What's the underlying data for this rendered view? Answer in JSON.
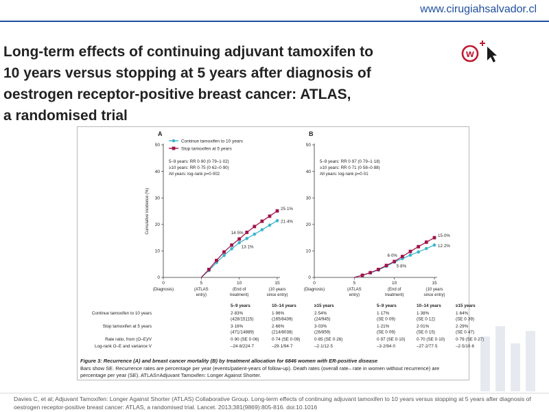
{
  "site": {
    "url": "www.cirugiahsalvador.cl"
  },
  "slide": {
    "title_lines": [
      "Long-term effects of continuing adjuvant tamoxifen to",
      "10 years versus stopping at 5 years after diagnosis of",
      "oestrogen receptor-positive breast cancer: ATLAS,",
      "a randomised trial"
    ]
  },
  "colors": {
    "continue": "#3bb4cc",
    "stop": "#a0144a",
    "header": "#1f4e9c"
  },
  "chart_data": [
    {
      "type": "line",
      "panel_label": "A",
      "ylabel": "Cumulative incidence (%)",
      "ylim": [
        0,
        50
      ],
      "yticks": [
        0,
        10,
        20,
        30,
        40,
        50
      ],
      "xlim": [
        0,
        15
      ],
      "xticks": [
        {
          "x": 0,
          "label": "0",
          "sub": [
            "(Diagnosis)"
          ]
        },
        {
          "x": 5,
          "label": "5",
          "sub": [
            "(ATLAS",
            "entry)"
          ]
        },
        {
          "x": 10,
          "label": "10",
          "sub": [
            "(End of",
            "treatment)"
          ]
        },
        {
          "x": 15,
          "label": "15",
          "sub": [
            "(10 years",
            "since entry)"
          ]
        }
      ],
      "legend": [
        "Continue tamoxifen to 10 years",
        "Stop tamoxifen at 5 years"
      ],
      "stats": [
        "5–9 years: RR 0·90 (0·79–1·02)",
        "≥10 years: RR 0·75 (0·62–0·90)",
        "All years: log-rank p=0·002"
      ],
      "series": [
        {
          "name": "Continue tamoxifen to 10 years",
          "x": [
            5,
            6,
            7,
            8,
            9,
            10,
            11,
            12,
            13,
            14,
            15
          ],
          "y": [
            0,
            2.6,
            5.6,
            8.3,
            10.8,
            13.1,
            14.7,
            16.3,
            18.0,
            19.7,
            21.4
          ]
        },
        {
          "name": "Stop tamoxifen at 5 years",
          "x": [
            5,
            6,
            7,
            8,
            9,
            10,
            11,
            12,
            13,
            14,
            15
          ],
          "y": [
            0,
            3.0,
            6.4,
            9.6,
            12.2,
            14.5,
            17.0,
            19.2,
            21.2,
            23.1,
            25.1
          ]
        }
      ],
      "annotations": [
        {
          "x": 10,
          "y": 14.5,
          "text": "14·5%",
          "series": 1
        },
        {
          "x": 10,
          "y": 13.1,
          "text": "13·1%",
          "series": 0
        },
        {
          "x": 15,
          "y": 25.1,
          "text": "25·1%",
          "series": 1
        },
        {
          "x": 15,
          "y": 21.4,
          "text": "21·4%",
          "series": 0
        }
      ]
    },
    {
      "type": "line",
      "panel_label": "B",
      "ylim": [
        0,
        50
      ],
      "xlim": [
        0,
        15
      ],
      "xticks": [
        {
          "x": 0,
          "label": "0",
          "sub": [
            "(Diagnosis)"
          ]
        },
        {
          "x": 5,
          "label": "5",
          "sub": [
            "(ATLAS",
            "entry)"
          ]
        },
        {
          "x": 10,
          "label": "10",
          "sub": [
            "(End of",
            "treatment)"
          ]
        },
        {
          "x": 15,
          "label": "15",
          "sub": [
            "(10 years",
            "since entry)"
          ]
        }
      ],
      "stats": [
        "5–9 years: RR 0·97 (0·79–1·18)",
        "≥10 years: RR 0·71 (0·58–0·88)",
        "All years: log-rank p=0·01"
      ],
      "series": [
        {
          "name": "Continue tamoxifen to 10 years",
          "x": [
            5,
            6,
            7,
            8,
            9,
            10,
            11,
            12,
            13,
            14,
            15
          ],
          "y": [
            0,
            0.8,
            1.7,
            2.8,
            4.2,
            5.8,
            7.1,
            8.4,
            9.6,
            10.9,
            12.2
          ]
        },
        {
          "name": "Stop tamoxifen at 5 years",
          "x": [
            5,
            6,
            7,
            8,
            9,
            10,
            11,
            12,
            13,
            14,
            15
          ],
          "y": [
            0,
            0.8,
            1.8,
            3.0,
            4.5,
            6.0,
            7.9,
            9.8,
            11.6,
            13.3,
            15.0
          ]
        }
      ],
      "annotations": [
        {
          "x": 10,
          "y": 6.0,
          "text": "6·0%",
          "series": 1
        },
        {
          "x": 10,
          "y": 5.8,
          "text": "5·8%",
          "series": 0
        },
        {
          "x": 15,
          "y": 15.0,
          "text": "15·0%",
          "series": 1
        },
        {
          "x": 15,
          "y": 12.2,
          "text": "12·2%",
          "series": 0
        }
      ]
    }
  ],
  "stats_table": {
    "col_heads": [
      [
        "5–9 years",
        "10–14 years",
        "≥15 years"
      ],
      [
        "5–9 years",
        "10–14 years",
        "≥15 years"
      ]
    ],
    "rows": [
      {
        "label": "Continue tamoxifen to 10 years",
        "a": [
          [
            "2·83%",
            "(428/15115)"
          ],
          [
            "1·96%",
            "(165/8439)"
          ],
          [
            "2·54%",
            "(24/945)"
          ]
        ],
        "b": [
          [
            "1·17%",
            "(SE 0·09)"
          ],
          [
            "1·38%",
            "(SE 0·12)"
          ],
          [
            "1·64%",
            "(SE 0·39)"
          ]
        ]
      },
      {
        "label": "Stop tamoxifen at 5 years",
        "a": [
          [
            "3·16%",
            "(471/14889)"
          ],
          [
            "2·66%",
            "(214/8038)"
          ],
          [
            "3·03%",
            "(26/859)"
          ]
        ],
        "b": [
          [
            "1·21%",
            "(SE 0·09)"
          ],
          [
            "2·01%",
            "(SE 0·15)"
          ],
          [
            "2·29%",
            "(SE 0·47)"
          ]
        ]
      },
      {
        "label": "Rate ratio, from (O–E)/V",
        "a": [
          [
            "0·90 (SE 0·06)"
          ],
          [
            "0·74 (SE 0·09)"
          ],
          [
            "0·85 (SE 0·26)"
          ]
        ],
        "b": [
          [
            "0·97 (SE 0·10)"
          ],
          [
            "0·70 (SE 0·10)"
          ],
          [
            "0·79 (SE 0·27)"
          ]
        ]
      },
      {
        "label": "Log-rank O–E and variance V",
        "a": [
          [
            "–24·8/224·7"
          ],
          [
            "–29·1/94·7"
          ],
          [
            "–2·1/12·5"
          ]
        ],
        "b": [
          [
            "–3·2/94·0"
          ],
          [
            "–27·2/77·5"
          ],
          [
            "–2·5/10·6"
          ]
        ]
      }
    ]
  },
  "caption": {
    "title": "Figure 3: Recurrence (A) and breast cancer mortality (B) by treatment allocation for 6846 women with ER-positive disease",
    "line1": "Bars show SE. Recurrence rates are percentage per year (events/patient-years of follow-up). Death rates (overall rate– rate in women without recurrence) are",
    "line2": "percentage per year (SE). ATLAS=Adjuvant Tamoxifen: Longer Against Shorter."
  },
  "citation": "Davies C, et al; Adjuvant Tamoxifen: Longer Against Shorter (ATLAS) Collaborative Group. Long-term effects of continuing adjuvant tamoxifen to 10 years versus stopping at 5 years after diagnosis of oestrogen receptor-positive breast cancer: ATLAS, a randomised trial. Lancet. 2013;381(9869):805-816. doi:10.1016"
}
